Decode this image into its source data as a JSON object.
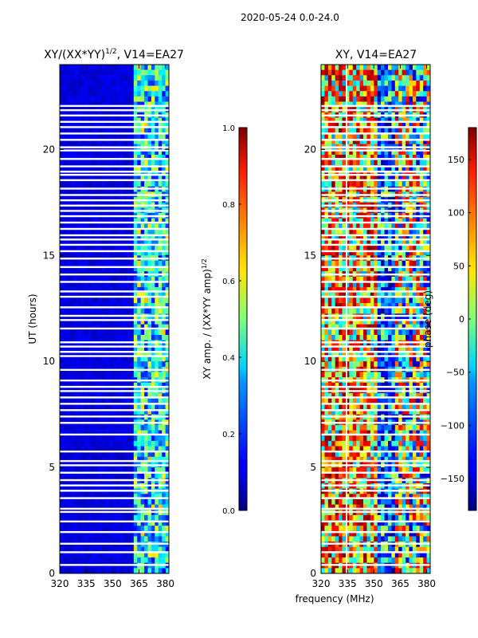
{
  "figure_title": "2020-05-24 0.0-24.0",
  "chart_data": [
    {
      "type": "heatmap",
      "title": "XY/(XX*YY)^1/2, V14=EA27",
      "title_main": "XY/(XX*YY)",
      "title_exp": "1/2",
      "title_tail": ", V14=EA27",
      "xlabel": "",
      "ylabel": "UT (hours)",
      "xlim": [
        320,
        382
      ],
      "ylim": [
        0,
        24
      ],
      "xticks": [
        320,
        335,
        350,
        365,
        380
      ],
      "yticks": [
        0,
        5,
        10,
        15,
        20
      ],
      "colormap": "jet",
      "colorbar": {
        "label": "XY amp. / (XX*YY amp)^1/2",
        "label_main": "XY amp. / (XX*YY amp)",
        "label_exp": "1/2",
        "range": [
          0.0,
          1.0
        ],
        "ticks": [
          0.0,
          0.2,
          0.4,
          0.6,
          0.8,
          1.0
        ],
        "tick_labels": [
          "0.0",
          "0.2",
          "0.4",
          "0.6",
          "0.8",
          "1.0"
        ]
      }
    },
    {
      "type": "heatmap",
      "title": "XY, V14=EA27",
      "xlabel": "frequency (MHz)",
      "ylabel": "",
      "xlim": [
        320,
        382
      ],
      "ylim": [
        0,
        24
      ],
      "xticks": [
        320,
        335,
        350,
        365,
        380
      ],
      "yticks": [
        0,
        5,
        10,
        15,
        20
      ],
      "colormap": "jet",
      "colorbar": {
        "label": "phase (deg)",
        "range": [
          -180,
          180
        ],
        "ticks": [
          -150,
          -100,
          -50,
          0,
          50,
          100,
          150
        ],
        "tick_labels": [
          "−150",
          "−100",
          "−50",
          "0",
          "50",
          "100",
          "150"
        ]
      }
    }
  ],
  "flagged_ut_hours": [
    0.4,
    1.0,
    1.4,
    1.95,
    2.45,
    2.9,
    3.05,
    3.55,
    3.9,
    4.15,
    4.4,
    4.75,
    5.1,
    5.3,
    5.75,
    6.55,
    7.1,
    7.4,
    7.7,
    8.0,
    8.3,
    8.6,
    8.8,
    9.1,
    9.6,
    10.25,
    10.45,
    10.7,
    10.9,
    11.55,
    11.95,
    12.15,
    12.55,
    13.05,
    13.3,
    13.75,
    14.1,
    14.45,
    14.85,
    15.2,
    15.5,
    15.75,
    15.95,
    16.25,
    16.55,
    16.85,
    17.1,
    17.35,
    17.6,
    17.85,
    18.15,
    18.55,
    18.8,
    18.95,
    19.2,
    19.55,
    19.95,
    20.1,
    20.45,
    20.75,
    21.05,
    21.3,
    21.6,
    21.85,
    22.05
  ]
}
